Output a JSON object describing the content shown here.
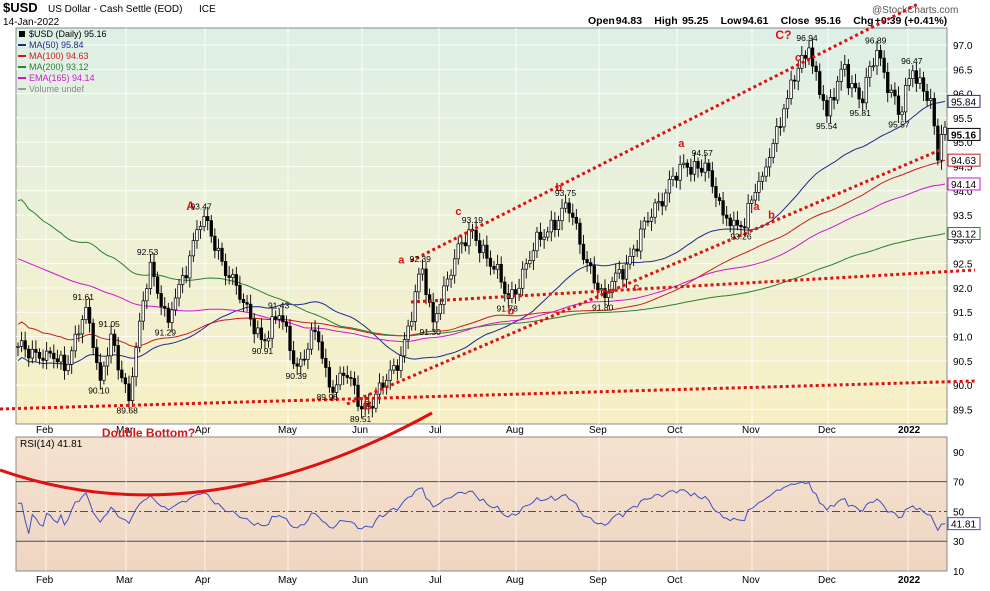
{
  "header": {
    "symbol": "$USD",
    "name": "US Dollar - Cash Settle (EOD)",
    "exchange": "ICE",
    "date": "14-Jan-2022",
    "watermark": "@StockCharts.com",
    "ohlc": [
      {
        "label": "Open",
        "value": "94.83"
      },
      {
        "label": "High",
        "value": "95.25"
      },
      {
        "label": "Low",
        "value": "94.61"
      },
      {
        "label": "Close",
        "value": "95.16"
      },
      {
        "label": "Chg",
        "value": "+0.39 (+0.41%)"
      }
    ]
  },
  "legend": [
    {
      "text": "$USD (Daily) 95.16",
      "color": "#000000"
    },
    {
      "text": "MA(50) 95.84",
      "color": "#1f2a8c"
    },
    {
      "text": "MA(100) 94.63",
      "color": "#c81e1e"
    },
    {
      "text": "MA(200) 93.12",
      "color": "#2e7d32"
    },
    {
      "text": "EMA(165) 94.14",
      "color": "#d016d0"
    },
    {
      "text": "Volume undef",
      "color": "#9a9a9a"
    }
  ],
  "colors": {
    "price": "#000000",
    "ma50": "#1f2a8c",
    "ma100": "#c81e1e",
    "ma200": "#2e7d32",
    "ema165": "#d016d0",
    "rsi": "#3f4fc4",
    "annotation": "#dd1111"
  },
  "chart_data": [
    {
      "type": "candlestick",
      "title": "$USD US Dollar - Cash Settle (EOD) ICE",
      "ylim": [
        89.2,
        97.35
      ],
      "y_ticks": [
        "97.0",
        "96.5",
        "96.0",
        "95.5",
        "95.0",
        "94.5",
        "94.0",
        "93.5",
        "93.0",
        "92.5",
        "92.0",
        "91.5",
        "91.0",
        "90.5",
        "90.0",
        "89.5"
      ],
      "x_labels": [
        "Feb",
        "Mar",
        "Apr",
        "May",
        "Jun",
        "Jul",
        "Aug",
        "Sep",
        "Oct",
        "Nov",
        "Dec",
        "2022"
      ],
      "price_path": [
        [
          "Feb 1",
          90.7
        ],
        [
          "Feb 8",
          90.3
        ],
        [
          "Feb 16",
          91.6
        ],
        [
          "Feb 22",
          90.1
        ],
        [
          "Feb 26",
          91.05
        ],
        [
          "Mar 2",
          89.68
        ],
        [
          "Mar 10",
          92.53
        ],
        [
          "Mar 17",
          91.29
        ],
        [
          "Mar 31",
          93.47
        ],
        [
          "Apr 15",
          91.7
        ],
        [
          "Apr 23",
          90.91
        ],
        [
          "Apr 29",
          91.43
        ],
        [
          "May 5",
          90.39
        ],
        [
          "May 13",
          91.1
        ],
        [
          "May 18",
          89.96
        ],
        [
          "May 25",
          90.2
        ],
        [
          "Jun 1",
          89.51
        ],
        [
          "Jun 15",
          90.3
        ],
        [
          "Jun 25",
          92.39
        ],
        [
          "Jun 29",
          91.3
        ],
        [
          "Jul 7",
          92.6
        ],
        [
          "Jul 15",
          93.19
        ],
        [
          "Jul 29",
          91.78
        ],
        [
          "Aug 10",
          93.0
        ],
        [
          "Aug 20",
          93.75
        ],
        [
          "Aug 25",
          92.9
        ],
        [
          "Sep 3",
          91.8
        ],
        [
          "Sep 15",
          92.8
        ],
        [
          "Sep 30",
          94.3
        ],
        [
          "Oct 12",
          94.57
        ],
        [
          "Oct 20",
          93.5
        ],
        [
          "Oct 28",
          93.26
        ],
        [
          "Nov 5",
          94.3
        ],
        [
          "Nov 15",
          95.9
        ],
        [
          "Nov 24",
          96.94
        ],
        [
          "Dec 1",
          95.54
        ],
        [
          "Dec 7",
          96.6
        ],
        [
          "Dec 14",
          95.81
        ],
        [
          "Dec 20",
          96.89
        ],
        [
          "Dec 29",
          95.57
        ],
        [
          "Jan 3",
          96.47
        ],
        [
          "Jan 10",
          95.9
        ],
        [
          "Jan 12",
          94.63
        ],
        [
          "Jan 14",
          95.16
        ]
      ],
      "series": [
        {
          "name": "MA(50)",
          "last": 95.84
        },
        {
          "name": "MA(100)",
          "last": 94.63
        },
        {
          "name": "MA(200)",
          "last": 93.12
        },
        {
          "name": "EMA(165)",
          "last": 94.14
        }
      ],
      "value_labels": [
        "91.61",
        "91.05",
        "90.10",
        "89.68",
        "92.53",
        "91.29",
        "93.47",
        "91.43",
        "90.91",
        "90.39",
        "89.96",
        "89.51",
        "92.39",
        "91.30",
        "93.19",
        "91.78",
        "93.75",
        "91.80",
        "94.57",
        "93.26",
        "96.94",
        "95.54",
        "96.89",
        "95.81",
        "96.47",
        "95.57"
      ],
      "last_value_tags": [
        "95.84",
        "95.16",
        "94.63",
        "94.14",
        "93.12"
      ],
      "wave_labels": [
        "A",
        "B",
        "a",
        "b",
        "c",
        "a",
        "b",
        "c",
        "a",
        "b",
        "c",
        "C?",
        "Double Bottom?"
      ]
    },
    {
      "type": "line",
      "title": "RSI(14) 41.81",
      "series": [
        {
          "name": "RSI(14)",
          "last": 41.81
        }
      ],
      "ylim": [
        10,
        100
      ],
      "y_ticks": [
        "90",
        "70",
        "50",
        "30",
        "10"
      ],
      "reference_lines": [
        70,
        50,
        30
      ],
      "x_labels": [
        "Feb",
        "Mar",
        "Apr",
        "May",
        "Jun",
        "Jul",
        "Aug",
        "Sep",
        "Oct",
        "Nov",
        "Dec",
        "2022"
      ]
    }
  ]
}
